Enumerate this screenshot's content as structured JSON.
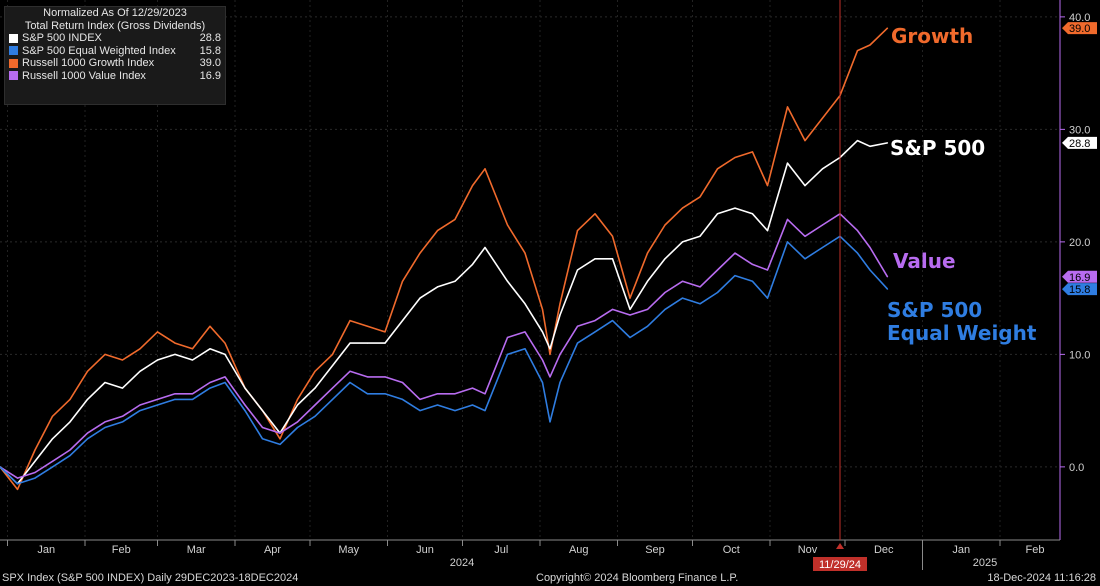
{
  "legend": {
    "title_line1": "Normalized As Of 12/29/2023",
    "title_line2": "Total Return Index (Gross Dividends)",
    "items": [
      {
        "name": "S&P 500 INDEX",
        "value": "28.8",
        "color": "#ffffff"
      },
      {
        "name": "S&P 500 Equal Weighted Index",
        "value": "15.8",
        "color": "#2f7de1"
      },
      {
        "name": "Russell 1000 Growth Index",
        "value": "39.0",
        "color": "#f06a2c"
      },
      {
        "name": "Russell 1000 Value Index",
        "value": "16.9",
        "color": "#b86cf0"
      }
    ]
  },
  "annotations": {
    "growth": "Growth",
    "sp500": "S&P 500",
    "value": "Value",
    "ew_line1": "S&P 500",
    "ew_line2": "Equal Weight"
  },
  "marker_date": "11/29/24",
  "footer": {
    "left": "SPX Index (S&P 500 INDEX)  Daily 29DEC2023-18DEC2024",
    "center": "Copyright© 2024 Bloomberg Finance L.P.",
    "right": "18-Dec-2024 11:16:28"
  },
  "chart_data": {
    "type": "line",
    "y_ticks": [
      "40.0",
      "30.0",
      "20.0",
      "10.0",
      "0.0"
    ],
    "ylim": [
      -6.5,
      41.5
    ],
    "x_ticks": [
      "Jan",
      "Feb",
      "Mar",
      "Apr",
      "May",
      "Jun",
      "Jul",
      "Aug",
      "Sep",
      "Oct",
      "Nov",
      "Dec",
      "Jan",
      "Feb"
    ],
    "year_labels": [
      "2024",
      "2025"
    ],
    "grid": true,
    "series": [
      {
        "name": "Russell 1000 Growth Index",
        "color": "#f06a2c",
        "last": "39.0",
        "x": [
          "2023-12-29",
          "2024-01-05",
          "2024-01-12",
          "2024-01-19",
          "2024-01-26",
          "2024-02-02",
          "2024-02-09",
          "2024-02-16",
          "2024-02-23",
          "2024-03-01",
          "2024-03-08",
          "2024-03-15",
          "2024-03-22",
          "2024-03-28",
          "2024-04-05",
          "2024-04-12",
          "2024-04-19",
          "2024-04-26",
          "2024-05-03",
          "2024-05-10",
          "2024-05-17",
          "2024-05-24",
          "2024-05-31",
          "2024-06-07",
          "2024-06-14",
          "2024-06-21",
          "2024-06-28",
          "2024-07-05",
          "2024-07-10",
          "2024-07-19",
          "2024-07-26",
          "2024-08-02",
          "2024-08-05",
          "2024-08-09",
          "2024-08-16",
          "2024-08-23",
          "2024-08-30",
          "2024-09-06",
          "2024-09-13",
          "2024-09-20",
          "2024-09-27",
          "2024-10-04",
          "2024-10-11",
          "2024-10-18",
          "2024-10-25",
          "2024-10-31",
          "2024-11-08",
          "2024-11-15",
          "2024-11-22",
          "2024-11-29",
          "2024-12-06",
          "2024-12-11",
          "2024-12-18"
        ],
        "values": [
          0.0,
          -2.0,
          1.5,
          4.5,
          6.0,
          8.5,
          10.0,
          9.5,
          10.5,
          12.0,
          11.0,
          10.5,
          12.5,
          11.0,
          7.0,
          5.0,
          2.5,
          6.0,
          8.5,
          10.0,
          13.0,
          12.5,
          12.0,
          16.5,
          19.0,
          21.0,
          22.0,
          25.0,
          26.5,
          21.5,
          19.0,
          14.0,
          10.0,
          14.5,
          21.0,
          22.5,
          20.5,
          15.0,
          19.0,
          21.5,
          23.0,
          24.0,
          26.5,
          27.5,
          28.0,
          25.0,
          32.0,
          29.0,
          31.0,
          33.0,
          37.0,
          37.5,
          39.0
        ]
      },
      {
        "name": "S&P 500 INDEX",
        "color": "#ffffff",
        "last": "28.8",
        "x": [
          "2023-12-29",
          "2024-01-05",
          "2024-01-12",
          "2024-01-19",
          "2024-01-26",
          "2024-02-02",
          "2024-02-09",
          "2024-02-16",
          "2024-02-23",
          "2024-03-01",
          "2024-03-08",
          "2024-03-15",
          "2024-03-22",
          "2024-03-28",
          "2024-04-05",
          "2024-04-12",
          "2024-04-19",
          "2024-04-26",
          "2024-05-03",
          "2024-05-10",
          "2024-05-17",
          "2024-05-24",
          "2024-05-31",
          "2024-06-07",
          "2024-06-14",
          "2024-06-21",
          "2024-06-28",
          "2024-07-05",
          "2024-07-10",
          "2024-07-19",
          "2024-07-26",
          "2024-08-02",
          "2024-08-05",
          "2024-08-09",
          "2024-08-16",
          "2024-08-23",
          "2024-08-30",
          "2024-09-06",
          "2024-09-13",
          "2024-09-20",
          "2024-09-27",
          "2024-10-04",
          "2024-10-11",
          "2024-10-18",
          "2024-10-25",
          "2024-10-31",
          "2024-11-08",
          "2024-11-15",
          "2024-11-22",
          "2024-11-29",
          "2024-12-06",
          "2024-12-11",
          "2024-12-18"
        ],
        "values": [
          0.0,
          -1.5,
          0.5,
          2.5,
          4.0,
          6.0,
          7.5,
          7.0,
          8.5,
          9.5,
          10.0,
          9.5,
          10.5,
          10.0,
          7.0,
          5.0,
          3.0,
          5.5,
          7.0,
          9.0,
          11.0,
          11.0,
          11.0,
          13.0,
          15.0,
          16.0,
          16.5,
          18.0,
          19.5,
          16.5,
          14.5,
          12.0,
          10.5,
          13.5,
          17.5,
          18.5,
          18.5,
          14.0,
          16.5,
          18.5,
          20.0,
          20.5,
          22.5,
          23.0,
          22.5,
          21.0,
          27.0,
          25.0,
          26.5,
          27.5,
          29.0,
          28.5,
          28.8
        ]
      },
      {
        "name": "Russell 1000 Value Index",
        "color": "#b86cf0",
        "last": "16.9",
        "x": [
          "2023-12-29",
          "2024-01-05",
          "2024-01-12",
          "2024-01-19",
          "2024-01-26",
          "2024-02-02",
          "2024-02-09",
          "2024-02-16",
          "2024-02-23",
          "2024-03-01",
          "2024-03-08",
          "2024-03-15",
          "2024-03-22",
          "2024-03-28",
          "2024-04-05",
          "2024-04-12",
          "2024-04-19",
          "2024-04-26",
          "2024-05-03",
          "2024-05-10",
          "2024-05-17",
          "2024-05-24",
          "2024-05-31",
          "2024-06-07",
          "2024-06-14",
          "2024-06-21",
          "2024-06-28",
          "2024-07-05",
          "2024-07-10",
          "2024-07-19",
          "2024-07-26",
          "2024-08-02",
          "2024-08-05",
          "2024-08-09",
          "2024-08-16",
          "2024-08-23",
          "2024-08-30",
          "2024-09-06",
          "2024-09-13",
          "2024-09-20",
          "2024-09-27",
          "2024-10-04",
          "2024-10-11",
          "2024-10-18",
          "2024-10-25",
          "2024-10-31",
          "2024-11-08",
          "2024-11-15",
          "2024-11-22",
          "2024-11-29",
          "2024-12-06",
          "2024-12-11",
          "2024-12-18"
        ],
        "values": [
          0.0,
          -1.0,
          -0.5,
          0.5,
          1.5,
          3.0,
          4.0,
          4.5,
          5.5,
          6.0,
          6.5,
          6.5,
          7.5,
          8.0,
          5.5,
          3.5,
          3.0,
          4.0,
          5.5,
          7.0,
          8.5,
          8.0,
          8.0,
          7.5,
          6.0,
          6.5,
          6.5,
          7.0,
          6.5,
          11.5,
          12.0,
          9.5,
          8.0,
          10.0,
          12.5,
          13.0,
          14.0,
          13.5,
          14.0,
          15.5,
          16.5,
          16.0,
          17.5,
          19.0,
          18.0,
          17.5,
          22.0,
          20.5,
          21.5,
          22.5,
          21.0,
          19.5,
          16.9
        ]
      },
      {
        "name": "S&P 500 Equal Weighted Index",
        "color": "#2f7de1",
        "last": "15.8",
        "x": [
          "2023-12-29",
          "2024-01-05",
          "2024-01-12",
          "2024-01-19",
          "2024-01-26",
          "2024-02-02",
          "2024-02-09",
          "2024-02-16",
          "2024-02-23",
          "2024-03-01",
          "2024-03-08",
          "2024-03-15",
          "2024-03-22",
          "2024-03-28",
          "2024-04-05",
          "2024-04-12",
          "2024-04-19",
          "2024-04-26",
          "2024-05-03",
          "2024-05-10",
          "2024-05-17",
          "2024-05-24",
          "2024-05-31",
          "2024-06-07",
          "2024-06-14",
          "2024-06-21",
          "2024-06-28",
          "2024-07-05",
          "2024-07-10",
          "2024-07-19",
          "2024-07-26",
          "2024-08-02",
          "2024-08-05",
          "2024-08-09",
          "2024-08-16",
          "2024-08-23",
          "2024-08-30",
          "2024-09-06",
          "2024-09-13",
          "2024-09-20",
          "2024-09-27",
          "2024-10-04",
          "2024-10-11",
          "2024-10-18",
          "2024-10-25",
          "2024-10-31",
          "2024-11-08",
          "2024-11-15",
          "2024-11-22",
          "2024-11-29",
          "2024-12-06",
          "2024-12-11",
          "2024-12-18"
        ],
        "values": [
          0.0,
          -1.5,
          -1.0,
          0.0,
          1.0,
          2.5,
          3.5,
          4.0,
          5.0,
          5.5,
          6.0,
          6.0,
          7.0,
          7.5,
          5.0,
          2.5,
          2.0,
          3.5,
          4.5,
          6.0,
          7.5,
          6.5,
          6.5,
          6.0,
          5.0,
          5.5,
          5.0,
          5.5,
          5.0,
          10.0,
          10.5,
          7.5,
          4.0,
          7.5,
          11.0,
          12.0,
          13.0,
          11.5,
          12.5,
          14.0,
          15.0,
          14.5,
          15.5,
          17.0,
          16.5,
          15.0,
          20.0,
          18.5,
          19.5,
          20.5,
          19.0,
          17.5,
          15.8
        ]
      }
    ]
  }
}
